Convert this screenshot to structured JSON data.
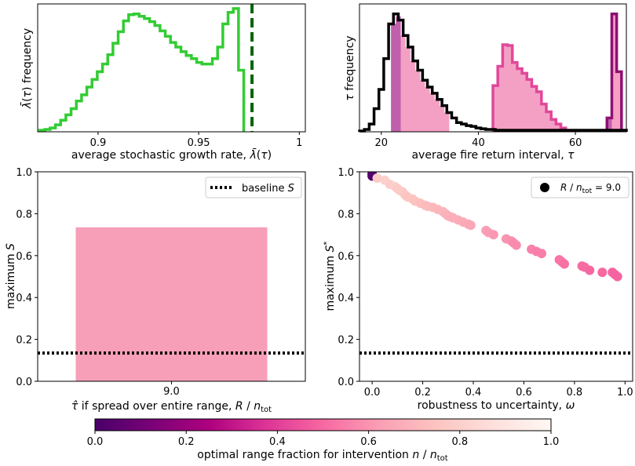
{
  "chart_data": [
    {
      "type": "area",
      "panel": "top-left",
      "xlabel": "average stochastic growth rate, λ̄(τ)",
      "ylabel": "λ̄(τ) frequency",
      "xlim": [
        0.87,
        1.003
      ],
      "xticks": [
        0.9,
        0.95,
        1
      ],
      "xtick_labels": [
        "0.9",
        "0.95",
        "1"
      ],
      "bins_start": 0.871,
      "bin_width": 0.0026,
      "counts": [
        2,
        3,
        5,
        9,
        15,
        22,
        30,
        40,
        48,
        58,
        68,
        78,
        88,
        100,
        115,
        130,
        144,
        152,
        153,
        150,
        147,
        143,
        138,
        131,
        124,
        116,
        110,
        104,
        99,
        95,
        90,
        88,
        88,
        95,
        110,
        140,
        155,
        160,
        80
      ],
      "threshold": 0.9765,
      "colors": {
        "line": "#33cc33",
        "fill": "#7fdc7f",
        "threshold": "#006400"
      }
    },
    {
      "type": "area",
      "panel": "top-right",
      "xlabel": "average fire return interval, τ",
      "ylabel": "τ frequency",
      "xlim": [
        15.5,
        70.5
      ],
      "xticks": [
        20,
        40,
        60
      ],
      "xtick_labels": [
        "20",
        "40",
        "60"
      ],
      "series": [
        {
          "bins_start": 15.5,
          "bin_width": 1,
          "counts": [
            1,
            3,
            10,
            30,
            55,
            95,
            140,
            153,
            145,
            125,
            110,
            92,
            80,
            67,
            58,
            50,
            42,
            34,
            25,
            18,
            12,
            10,
            8,
            7,
            5,
            4,
            3,
            3,
            2,
            2,
            2,
            2,
            2,
            2,
            2,
            2,
            2,
            2,
            2,
            2,
            2,
            2,
            2,
            2,
            2,
            2,
            2,
            2,
            2,
            2,
            2,
            2,
            2,
            2,
            2
          ]
        },
        {
          "bins_start": 22.0,
          "bin_width": 1,
          "counts": [
            140,
            150,
            125,
            110,
            92,
            80,
            67,
            58,
            50,
            42,
            34,
            25
          ],
          "dark_until": 24.0
        },
        {
          "bins_start": 43.0,
          "bin_width": 1,
          "counts": [
            60,
            85,
            113,
            112,
            90,
            82,
            76,
            68,
            59,
            52,
            36,
            26,
            16,
            10,
            5
          ]
        },
        {
          "bins_start": 66.5,
          "bin_width": 1,
          "counts": [
            18,
            153,
            78
          ],
          "dark_until": 67.5
        }
      ],
      "colors": {
        "black": "#000000",
        "pink_fill": "#f4a0c4",
        "pink_line": "#e0489a",
        "purple_fill": "#c060ac",
        "purple_line": "#8f0f72"
      }
    },
    {
      "type": "bar",
      "panel": "bottom-left",
      "categories": [
        "9.0"
      ],
      "values": [
        0.735
      ],
      "ylabel": "maximum S",
      "xlabel": "τ̂ if spread over entire range, R / n_tot",
      "ylim": [
        0,
        1.0
      ],
      "yticks": [
        0.0,
        0.2,
        0.4,
        0.6,
        0.8,
        1.0
      ],
      "ytick_labels": [
        "0.0",
        "0.2",
        "0.4",
        "0.6",
        "0.8",
        "1.0"
      ],
      "baseline": 0.135,
      "legend": {
        "label": "baseline S",
        "placement": "top-right"
      },
      "colors": {
        "bar": "#f79fb8",
        "baseline": "#000000"
      }
    },
    {
      "type": "scatter",
      "panel": "bottom-right",
      "xlabel": "robustness to uncertainty, ω",
      "ylabel": "maximum S*",
      "xlim": [
        -0.05,
        1.03
      ],
      "ylim": [
        0,
        1.0
      ],
      "xticks": [
        0.0,
        0.2,
        0.4,
        0.6,
        0.8,
        1.0
      ],
      "xtick_labels": [
        "0.0",
        "0.2",
        "0.4",
        "0.6",
        "0.8",
        "1.0"
      ],
      "yticks": [
        0.0,
        0.2,
        0.4,
        0.6,
        0.8,
        1.0
      ],
      "ytick_labels": [
        "0.0",
        "0.2",
        "0.4",
        "0.6",
        "0.8",
        "1.0"
      ],
      "baseline": 0.135,
      "legend": {
        "label": "R / n_tot = 9.0",
        "placement": "top-right"
      },
      "points": [
        {
          "x": 0.0,
          "y": 0.99,
          "c": 0.02
        },
        {
          "x": 0.0,
          "y": 0.98,
          "c": 0.02
        },
        {
          "x": 0.02,
          "y": 0.97,
          "c": 0.78
        },
        {
          "x": 0.05,
          "y": 0.96,
          "c": 0.8
        },
        {
          "x": 0.07,
          "y": 0.94,
          "c": 0.79
        },
        {
          "x": 0.09,
          "y": 0.93,
          "c": 0.8
        },
        {
          "x": 0.1,
          "y": 0.92,
          "c": 0.78
        },
        {
          "x": 0.11,
          "y": 0.91,
          "c": 0.78
        },
        {
          "x": 0.12,
          "y": 0.905,
          "c": 0.78
        },
        {
          "x": 0.13,
          "y": 0.89,
          "c": 0.76
        },
        {
          "x": 0.14,
          "y": 0.88,
          "c": 0.75
        },
        {
          "x": 0.16,
          "y": 0.87,
          "c": 0.75
        },
        {
          "x": 0.17,
          "y": 0.86,
          "c": 0.74
        },
        {
          "x": 0.19,
          "y": 0.85,
          "c": 0.73
        },
        {
          "x": 0.21,
          "y": 0.84,
          "c": 0.72
        },
        {
          "x": 0.22,
          "y": 0.835,
          "c": 0.72
        },
        {
          "x": 0.24,
          "y": 0.83,
          "c": 0.71
        },
        {
          "x": 0.26,
          "y": 0.82,
          "c": 0.7
        },
        {
          "x": 0.28,
          "y": 0.81,
          "c": 0.7
        },
        {
          "x": 0.29,
          "y": 0.8,
          "c": 0.69
        },
        {
          "x": 0.3,
          "y": 0.79,
          "c": 0.68
        },
        {
          "x": 0.31,
          "y": 0.785,
          "c": 0.68
        },
        {
          "x": 0.32,
          "y": 0.78,
          "c": 0.67
        },
        {
          "x": 0.34,
          "y": 0.77,
          "c": 0.67
        },
        {
          "x": 0.36,
          "y": 0.76,
          "c": 0.66
        },
        {
          "x": 0.38,
          "y": 0.75,
          "c": 0.65
        },
        {
          "x": 0.39,
          "y": 0.745,
          "c": 0.65
        },
        {
          "x": 0.45,
          "y": 0.72,
          "c": 0.63
        },
        {
          "x": 0.46,
          "y": 0.71,
          "c": 0.62
        },
        {
          "x": 0.48,
          "y": 0.7,
          "c": 0.61
        },
        {
          "x": 0.53,
          "y": 0.68,
          "c": 0.6
        },
        {
          "x": 0.55,
          "y": 0.67,
          "c": 0.59
        },
        {
          "x": 0.56,
          "y": 0.66,
          "c": 0.58
        },
        {
          "x": 0.57,
          "y": 0.65,
          "c": 0.58
        },
        {
          "x": 0.63,
          "y": 0.63,
          "c": 0.56
        },
        {
          "x": 0.65,
          "y": 0.62,
          "c": 0.55
        },
        {
          "x": 0.67,
          "y": 0.61,
          "c": 0.55
        },
        {
          "x": 0.74,
          "y": 0.58,
          "c": 0.53
        },
        {
          "x": 0.75,
          "y": 0.57,
          "c": 0.53
        },
        {
          "x": 0.76,
          "y": 0.56,
          "c": 0.52
        },
        {
          "x": 0.83,
          "y": 0.55,
          "c": 0.51
        },
        {
          "x": 0.84,
          "y": 0.545,
          "c": 0.51
        },
        {
          "x": 0.86,
          "y": 0.53,
          "c": 0.5
        },
        {
          "x": 0.91,
          "y": 0.52,
          "c": 0.5
        },
        {
          "x": 0.95,
          "y": 0.52,
          "c": 0.49
        },
        {
          "x": 0.96,
          "y": 0.51,
          "c": 0.49
        },
        {
          "x": 0.97,
          "y": 0.5,
          "c": 0.49
        }
      ]
    },
    {
      "type": "colorbar",
      "panel": "bottom-colorbar",
      "label": "optimal range fraction for intervention n / n_tot",
      "range": [
        0.0,
        1.0
      ],
      "ticks": [
        0.0,
        0.2,
        0.4,
        0.6,
        0.8,
        1.0
      ],
      "tick_labels": [
        "0.0",
        "0.2",
        "0.4",
        "0.6",
        "0.8",
        "1.0"
      ],
      "colormap": "RdPu_r",
      "stops": [
        "#49006a",
        "#7a0177",
        "#ae017e",
        "#dd3497",
        "#f768a1",
        "#fa9fb5",
        "#fcc5c0",
        "#fde0dd",
        "#fff7f3"
      ]
    }
  ]
}
